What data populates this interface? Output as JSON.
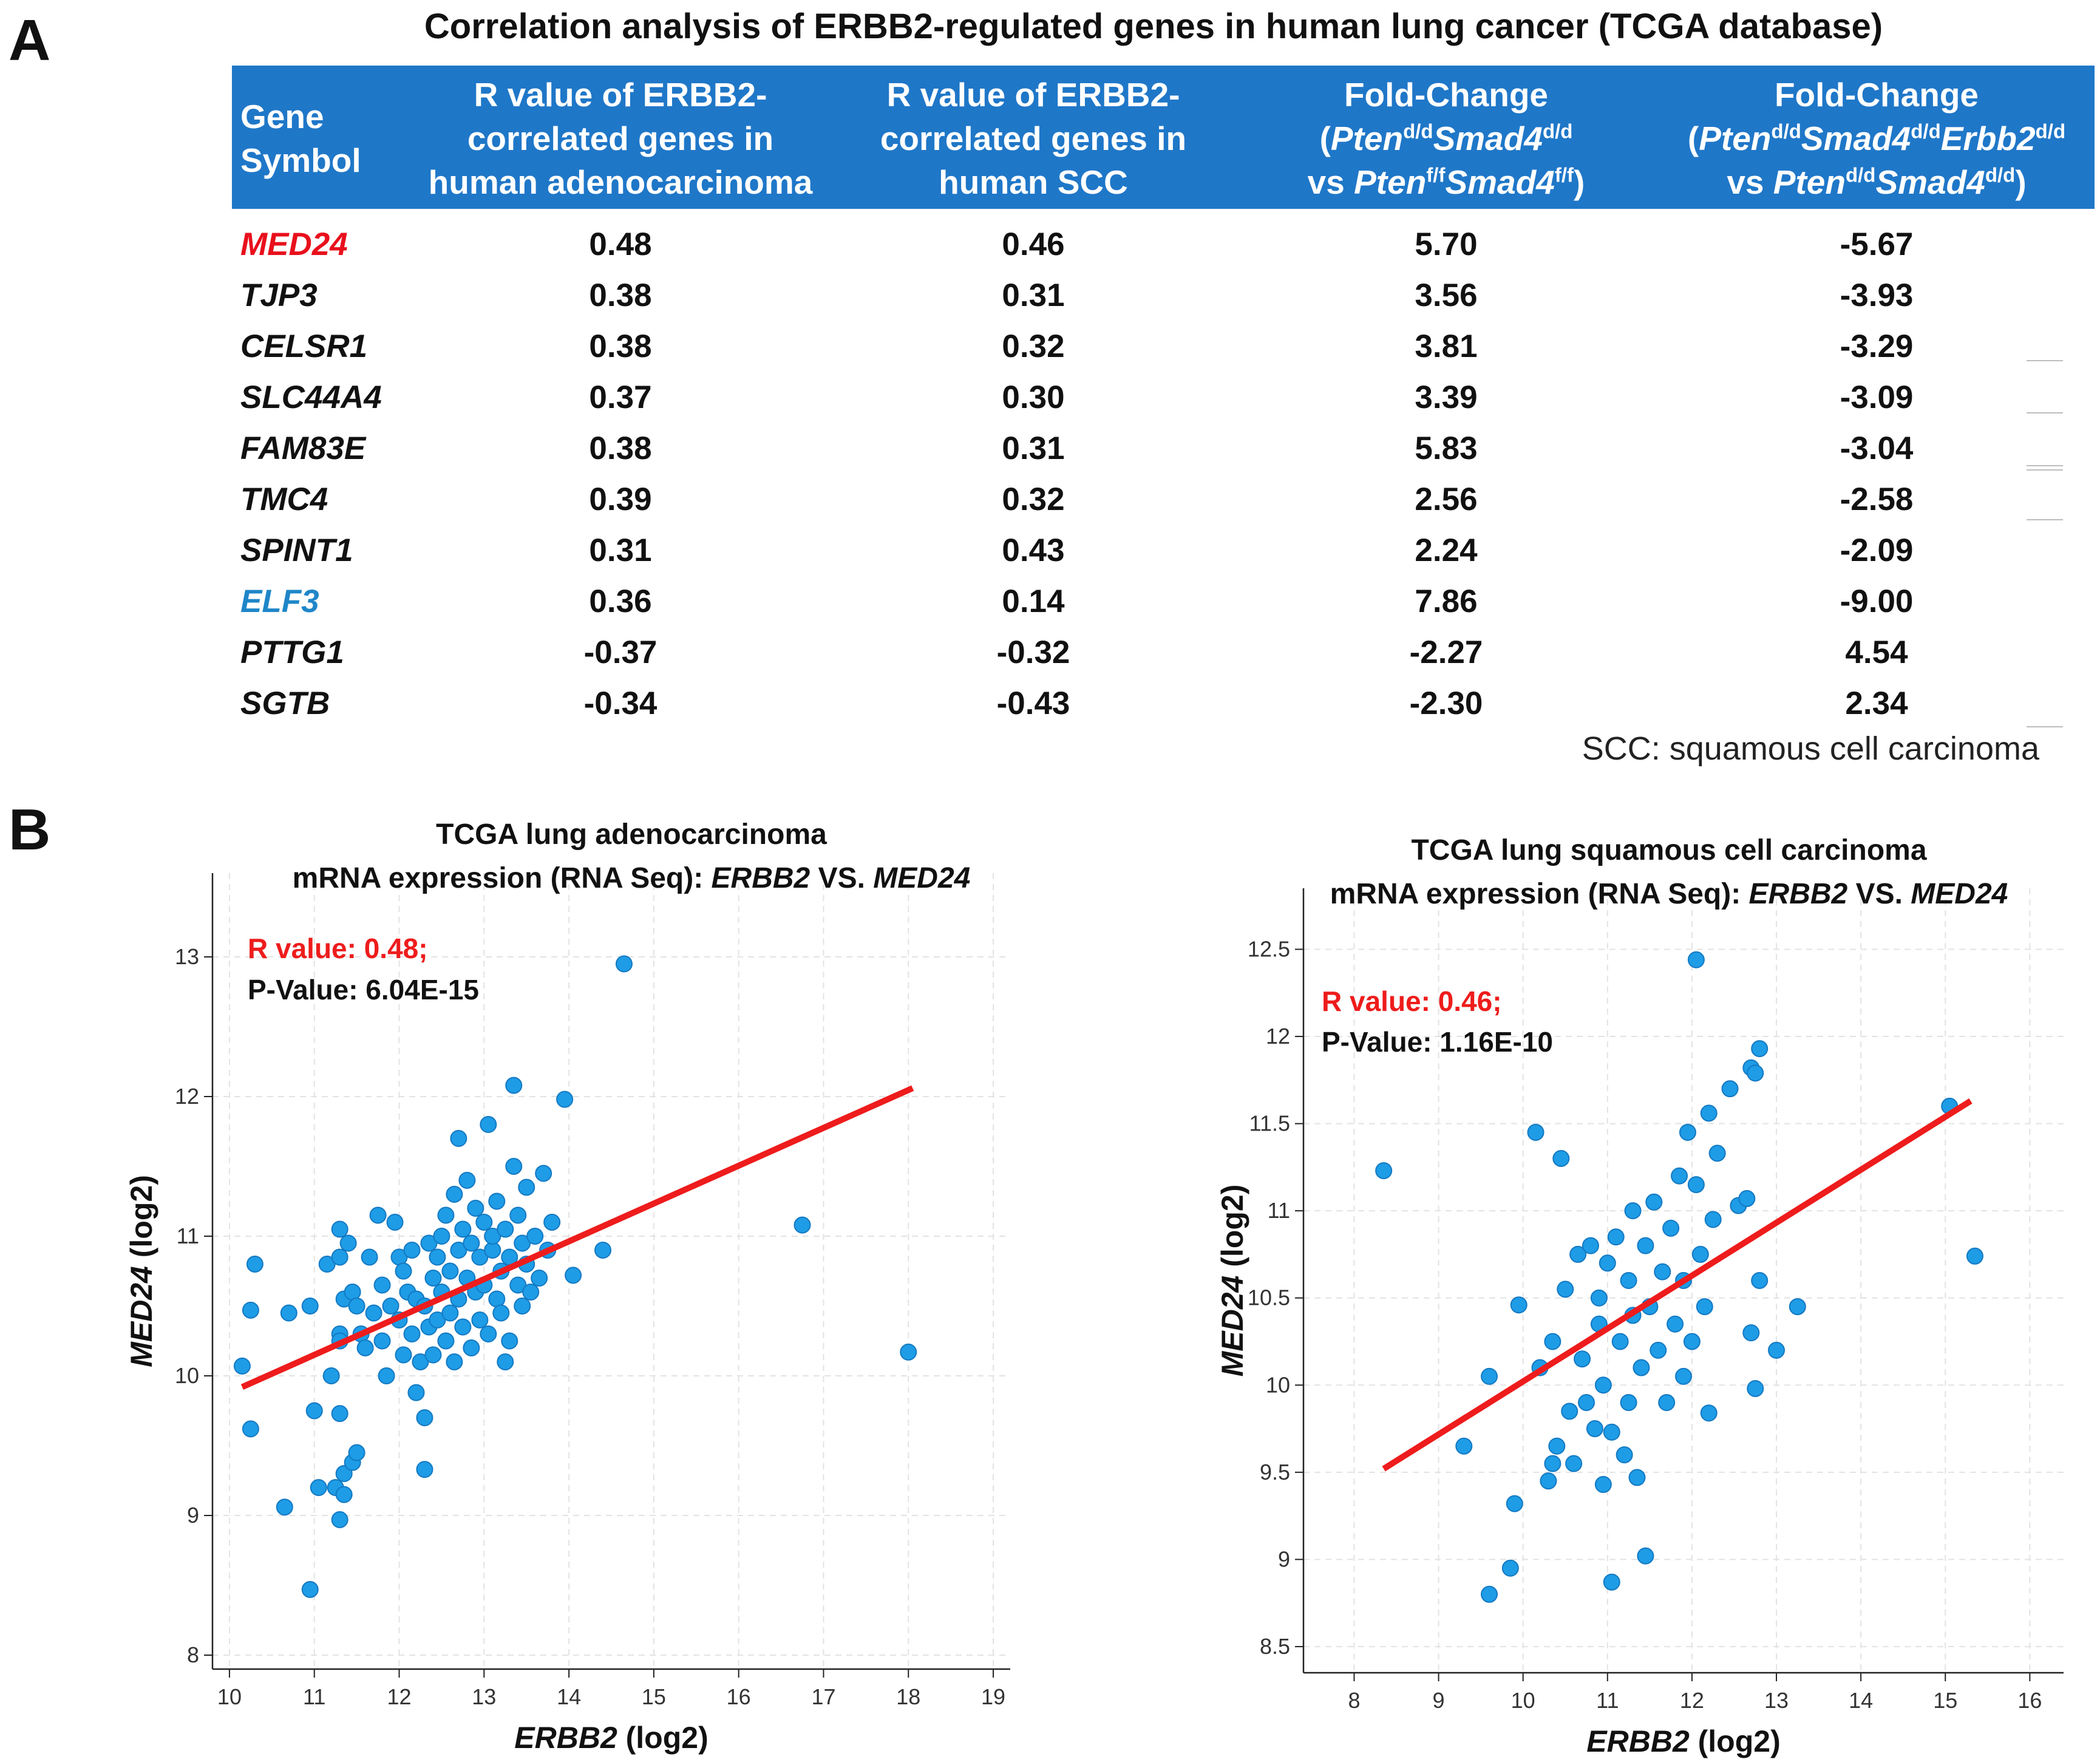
{
  "panel_a": {
    "letter": "A",
    "title": "Correlation analysis of ERBB2-regulated genes in human lung cancer (TCGA database)",
    "headers": {
      "gene_line1": "Gene",
      "gene_line2": "Symbol",
      "adeno_line1": "R value of ERBB2-",
      "adeno_line2": "correlated genes in",
      "adeno_line3": "human adenocarcinoma",
      "scc_line1": "R value of ERBB2-",
      "scc_line2": "correlated genes in",
      "scc_line3": "human SCC",
      "fc1_line1": "Fold-Change",
      "fc1_pten": "Pten",
      "fc1_pten_sup": "d/d",
      "fc1_smad4": "Smad4",
      "fc1_smad4_sup": "d/d",
      "fc1_vs": "vs",
      "fc1_pten2": "Pten",
      "fc1_pten2_sup": "f/f",
      "fc1_smad42": "Smad4",
      "fc1_smad42_sup": "f/f",
      "fc2_line1": "Fold-Change",
      "fc2_pten": "Pten",
      "fc2_pten_sup": "d/d",
      "fc2_smad4": "Smad4",
      "fc2_smad4_sup": "d/d",
      "fc2_erbb2": "Erbb2",
      "fc2_erbb2_sup": "d/d",
      "fc2_vs": "vs",
      "fc2_pten2": "Pten",
      "fc2_pten2_sup": "d/d",
      "fc2_smad42": "Smad4",
      "fc2_smad42_sup": "d/d"
    },
    "rows": [
      {
        "gene": "MED24",
        "color": "#e8101c",
        "adeno": "0.48",
        "scc": "0.46",
        "fc1": "5.70",
        "fc2": "-5.67"
      },
      {
        "gene": "TJP3",
        "color": "#111111",
        "adeno": "0.38",
        "scc": "0.31",
        "fc1": "3.56",
        "fc2": "-3.93"
      },
      {
        "gene": "CELSR1",
        "color": "#111111",
        "adeno": "0.38",
        "scc": "0.32",
        "fc1": "3.81",
        "fc2": "-3.29"
      },
      {
        "gene": "SLC44A4",
        "color": "#111111",
        "adeno": "0.37",
        "scc": "0.30",
        "fc1": "3.39",
        "fc2": "-3.09"
      },
      {
        "gene": "FAM83E",
        "color": "#111111",
        "adeno": "0.38",
        "scc": "0.31",
        "fc1": "5.83",
        "fc2": "-3.04"
      },
      {
        "gene": "TMC4",
        "color": "#111111",
        "adeno": "0.39",
        "scc": "0.32",
        "fc1": "2.56",
        "fc2": "-2.58"
      },
      {
        "gene": "SPINT1",
        "color": "#111111",
        "adeno": "0.31",
        "scc": "0.43",
        "fc1": "2.24",
        "fc2": "-2.09"
      },
      {
        "gene": "ELF3",
        "color": "#1f86c8",
        "adeno": "0.36",
        "scc": "0.14",
        "fc1": "7.86",
        "fc2": "-9.00"
      },
      {
        "gene": "PTTG1",
        "color": "#111111",
        "adeno": "-0.37",
        "scc": "-0.32",
        "fc1": "-2.27",
        "fc2": "4.54"
      },
      {
        "gene": "SGTB",
        "color": "#111111",
        "adeno": "-0.34",
        "scc": "-0.43",
        "fc1": "-2.30",
        "fc2": "2.34"
      }
    ],
    "footnote": "SCC: squamous cell carcinoma",
    "header_color": "#1f77c8"
  },
  "panel_b": {
    "letter": "B"
  },
  "chart_data": [
    {
      "type": "scatter",
      "title_line1": "TCGA lung adenocarcinoma",
      "title_line2_prefix": "mRNA expression (RNA Seq): ",
      "title_gene_x": "ERBB2",
      "title_vs": " VS. ",
      "title_gene_y": "MED24",
      "xlabel_gene": "ERBB2",
      "xlabel_suffix": " (log2)",
      "ylabel_gene": "MED24",
      "ylabel_suffix": " (log2)",
      "xlim": [
        9.8,
        19.2
      ],
      "ylim": [
        7.9,
        13.6
      ],
      "xticks": [
        "10",
        "11",
        "12",
        "13",
        "14",
        "15",
        "16",
        "17",
        "18",
        "19"
      ],
      "yticks": [
        "8",
        "9",
        "10",
        "11",
        "12",
        "13"
      ],
      "r_label": "R value: 0.48;",
      "p_label": "P-Value: 6.04E-15",
      "regression": {
        "x": [
          10.15,
          18.05
        ],
        "y": [
          9.92,
          12.06
        ]
      },
      "point_color": "#1e9ce6",
      "line_color": "#ee1c1c",
      "points": [
        [
          10.15,
          10.07
        ],
        [
          10.25,
          10.47
        ],
        [
          10.3,
          10.8
        ],
        [
          10.25,
          9.62
        ],
        [
          10.65,
          9.06
        ],
        [
          10.7,
          10.45
        ],
        [
          10.95,
          8.47
        ],
        [
          10.95,
          10.5
        ],
        [
          11.0,
          9.75
        ],
        [
          11.05,
          9.2
        ],
        [
          11.15,
          10.8
        ],
        [
          11.2,
          10.0
        ],
        [
          11.25,
          9.2
        ],
        [
          11.3,
          9.73
        ],
        [
          11.3,
          10.3
        ],
        [
          11.3,
          10.25
        ],
        [
          11.3,
          8.97
        ],
        [
          11.35,
          9.3
        ],
        [
          11.35,
          9.15
        ],
        [
          11.45,
          9.38
        ],
        [
          11.5,
          9.45
        ],
        [
          11.35,
          10.55
        ],
        [
          11.3,
          10.85
        ],
        [
          11.3,
          11.05
        ],
        [
          11.4,
          10.95
        ],
        [
          11.45,
          10.6
        ],
        [
          11.5,
          10.5
        ],
        [
          11.55,
          10.3
        ],
        [
          11.6,
          10.2
        ],
        [
          11.65,
          10.85
        ],
        [
          11.7,
          10.45
        ],
        [
          11.75,
          11.15
        ],
        [
          11.8,
          10.65
        ],
        [
          11.8,
          10.25
        ],
        [
          11.85,
          10.0
        ],
        [
          11.9,
          10.5
        ],
        [
          11.95,
          11.1
        ],
        [
          12.0,
          10.85
        ],
        [
          12.0,
          10.4
        ],
        [
          12.05,
          10.75
        ],
        [
          12.05,
          10.15
        ],
        [
          12.1,
          10.6
        ],
        [
          12.15,
          10.9
        ],
        [
          12.15,
          10.3
        ],
        [
          12.2,
          10.55
        ],
        [
          12.2,
          9.88
        ],
        [
          12.25,
          10.1
        ],
        [
          12.3,
          10.5
        ],
        [
          12.3,
          9.7
        ],
        [
          12.3,
          9.33
        ],
        [
          12.35,
          10.95
        ],
        [
          12.35,
          10.35
        ],
        [
          12.4,
          10.7
        ],
        [
          12.4,
          10.15
        ],
        [
          12.45,
          10.85
        ],
        [
          12.45,
          10.4
        ],
        [
          12.5,
          11.0
        ],
        [
          12.5,
          10.6
        ],
        [
          12.55,
          10.25
        ],
        [
          12.55,
          11.15
        ],
        [
          12.6,
          10.75
        ],
        [
          12.6,
          10.45
        ],
        [
          12.65,
          10.1
        ],
        [
          12.65,
          11.3
        ],
        [
          12.7,
          10.9
        ],
        [
          12.7,
          10.55
        ],
        [
          12.7,
          11.7
        ],
        [
          12.75,
          10.35
        ],
        [
          12.75,
          11.05
        ],
        [
          12.8,
          10.7
        ],
        [
          12.8,
          11.4
        ],
        [
          12.85,
          10.2
        ],
        [
          12.85,
          10.95
        ],
        [
          12.9,
          11.2
        ],
        [
          12.9,
          10.6
        ],
        [
          12.95,
          10.85
        ],
        [
          12.95,
          10.4
        ],
        [
          13.0,
          11.1
        ],
        [
          13.0,
          10.65
        ],
        [
          13.05,
          11.8
        ],
        [
          13.05,
          10.3
        ],
        [
          13.1,
          10.9
        ],
        [
          13.1,
          11.0
        ],
        [
          13.15,
          10.55
        ],
        [
          13.15,
          11.25
        ],
        [
          13.2,
          10.75
        ],
        [
          13.2,
          10.45
        ],
        [
          13.25,
          11.05
        ],
        [
          13.25,
          10.1
        ],
        [
          13.3,
          10.85
        ],
        [
          13.3,
          10.25
        ],
        [
          13.35,
          12.08
        ],
        [
          13.35,
          11.5
        ],
        [
          13.4,
          10.65
        ],
        [
          13.4,
          11.15
        ],
        [
          13.45,
          10.95
        ],
        [
          13.45,
          10.5
        ],
        [
          13.5,
          11.35
        ],
        [
          13.5,
          10.8
        ],
        [
          13.55,
          10.6
        ],
        [
          13.6,
          11.0
        ],
        [
          13.65,
          10.7
        ],
        [
          13.7,
          11.45
        ],
        [
          13.75,
          10.9
        ],
        [
          13.8,
          11.1
        ],
        [
          13.95,
          11.98
        ],
        [
          14.05,
          10.72
        ],
        [
          14.4,
          10.9
        ],
        [
          14.65,
          12.95
        ],
        [
          16.75,
          11.08
        ],
        [
          18.0,
          10.17
        ]
      ]
    },
    {
      "type": "scatter",
      "title_line1": "TCGA lung squamous cell carcinoma",
      "title_line2_prefix": "mRNA expression (RNA Seq): ",
      "title_gene_x": "ERBB2",
      "title_vs": " VS. ",
      "title_gene_y": "MED24",
      "xlabel_gene": "ERBB2",
      "xlabel_suffix": " (log2)",
      "ylabel_gene": "MED24",
      "ylabel_suffix": " (log2)",
      "xlim": [
        7.4,
        16.4
      ],
      "ylim": [
        8.35,
        12.85
      ],
      "xticks": [
        "8",
        "9",
        "10",
        "11",
        "12",
        "13",
        "14",
        "15",
        "16"
      ],
      "yticks": [
        "8.5",
        "9",
        "9.5",
        "10",
        "10.5",
        "11",
        "11.5",
        "12",
        "12.5"
      ],
      "r_label": "R value: 0.46;",
      "p_label": "P-Value: 1.16E-10",
      "regression": {
        "x": [
          8.35,
          15.3
        ],
        "y": [
          9.52,
          11.63
        ]
      },
      "point_color": "#1e9ce6",
      "line_color": "#ee1c1c",
      "points": [
        [
          8.35,
          11.23
        ],
        [
          9.3,
          9.65
        ],
        [
          9.6,
          10.05
        ],
        [
          9.6,
          8.8
        ],
        [
          9.85,
          8.95
        ],
        [
          9.9,
          9.32
        ],
        [
          9.95,
          10.46
        ],
        [
          10.15,
          11.45
        ],
        [
          10.2,
          10.1
        ],
        [
          10.3,
          9.45
        ],
        [
          10.35,
          9.55
        ],
        [
          10.35,
          10.25
        ],
        [
          10.4,
          9.65
        ],
        [
          10.45,
          11.3
        ],
        [
          10.5,
          10.55
        ],
        [
          10.55,
          9.85
        ],
        [
          10.6,
          9.55
        ],
        [
          10.65,
          10.75
        ],
        [
          10.7,
          10.15
        ],
        [
          10.75,
          9.9
        ],
        [
          10.8,
          10.8
        ],
        [
          10.85,
          9.75
        ],
        [
          10.9,
          10.5
        ],
        [
          10.9,
          10.35
        ],
        [
          10.95,
          9.43
        ],
        [
          10.95,
          10.0
        ],
        [
          11.0,
          10.7
        ],
        [
          11.05,
          9.73
        ],
        [
          11.05,
          8.87
        ],
        [
          11.1,
          10.85
        ],
        [
          11.15,
          10.25
        ],
        [
          11.2,
          9.6
        ],
        [
          11.25,
          10.6
        ],
        [
          11.25,
          9.9
        ],
        [
          11.3,
          11.0
        ],
        [
          11.3,
          10.4
        ],
        [
          11.35,
          9.47
        ],
        [
          11.4,
          10.1
        ],
        [
          11.45,
          9.02
        ],
        [
          11.45,
          10.8
        ],
        [
          11.5,
          10.45
        ],
        [
          11.55,
          11.05
        ],
        [
          11.6,
          10.2
        ],
        [
          11.65,
          10.65
        ],
        [
          11.7,
          9.9
        ],
        [
          11.75,
          10.9
        ],
        [
          11.8,
          10.35
        ],
        [
          11.85,
          11.2
        ],
        [
          11.9,
          10.05
        ],
        [
          11.9,
          10.6
        ],
        [
          11.95,
          11.45
        ],
        [
          12.0,
          10.25
        ],
        [
          12.05,
          11.15
        ],
        [
          12.05,
          12.44
        ],
        [
          12.1,
          10.75
        ],
        [
          12.15,
          10.45
        ],
        [
          12.2,
          11.56
        ],
        [
          12.2,
          9.84
        ],
        [
          12.25,
          10.95
        ],
        [
          12.3,
          11.33
        ],
        [
          12.45,
          11.7
        ],
        [
          12.55,
          11.03
        ],
        [
          12.65,
          11.07
        ],
        [
          12.7,
          10.3
        ],
        [
          12.7,
          11.82
        ],
        [
          12.75,
          11.79
        ],
        [
          12.75,
          9.98
        ],
        [
          12.8,
          11.93
        ],
        [
          12.8,
          10.6
        ],
        [
          13.0,
          10.2
        ],
        [
          13.25,
          10.45
        ],
        [
          15.05,
          11.6
        ],
        [
          15.35,
          10.74
        ]
      ]
    }
  ]
}
